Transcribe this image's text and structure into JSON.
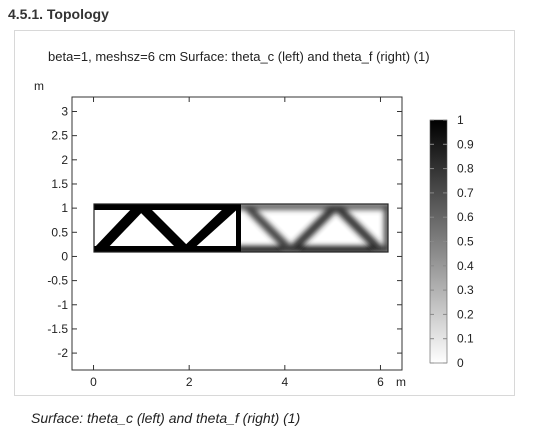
{
  "section": {
    "title": "4.5.1. Topology"
  },
  "plot": {
    "title": "beta=1, meshsz=6 cm Surface: theta_c (left) and theta_f (right) (1)",
    "y_unit": "m",
    "x_unit": "m",
    "x_ticks": [
      "0",
      "2",
      "4",
      "6"
    ],
    "y_ticks": [
      "3",
      "2.5",
      "2",
      "1.5",
      "1",
      "0.5",
      "0",
      "-0.5",
      "-1",
      "-1.5",
      "-2"
    ],
    "x_range": [
      -0.45,
      6.45
    ],
    "y_range": [
      -2.35,
      3.3
    ]
  },
  "colorbar": {
    "ticks": [
      "1",
      "0.9",
      "0.8",
      "0.7",
      "0.6",
      "0.5",
      "0.4",
      "0.3",
      "0.2",
      "0.1",
      "0"
    ],
    "colors": {
      "high": "#000000",
      "low": "#ffffff"
    }
  },
  "caption": {
    "text": "Surface: theta_c (left) and theta_f (right) (1)"
  }
}
